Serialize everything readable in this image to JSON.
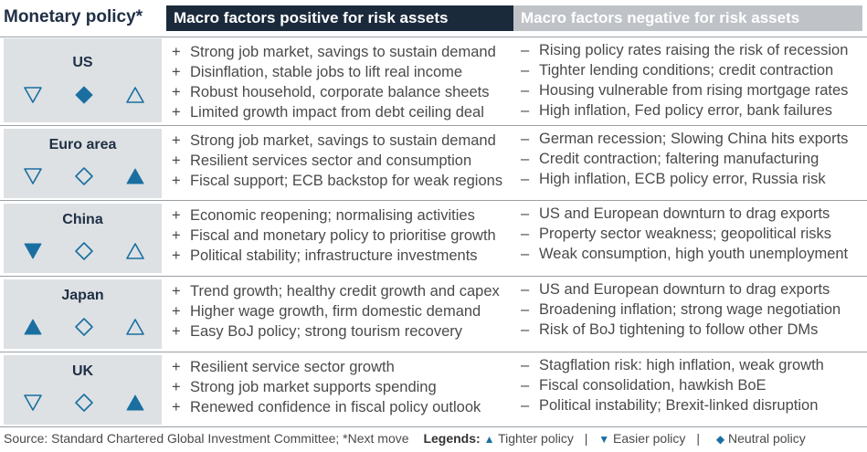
{
  "title": "Monetary policy*",
  "headers": {
    "positive": "Macro factors positive for risk assets",
    "negative": "Macro factors negative for risk assets"
  },
  "colors": {
    "accent_blue": "#1a6fa0",
    "header_dark": "#1b2a3b",
    "header_grey": "#bfc3c7",
    "region_bg": "#dde1e4"
  },
  "markers": {
    "positive": "+",
    "negative": "–"
  },
  "regions": [
    {
      "name": "US",
      "symbols": [
        "down-triangle-outline",
        "diamond-filled",
        "up-triangle-outline"
      ],
      "positives": [
        "Strong job market, savings to sustain demand",
        "Disinflation, stable jobs to lift real income",
        "Robust household, corporate balance sheets",
        "Limited growth impact from debt ceiling deal"
      ],
      "negatives": [
        "Rising policy rates raising the risk of recession",
        "Tighter lending conditions; credit contraction",
        "Housing vulnerable from rising mortgage rates",
        "High inflation, Fed policy error, bank failures"
      ]
    },
    {
      "name": "Euro area",
      "symbols": [
        "down-triangle-outline",
        "diamond-outline",
        "up-triangle-filled"
      ],
      "positives": [
        "Strong job market, savings to sustain demand",
        "Resilient services sector and consumption",
        "Fiscal support; ECB backstop for weak regions"
      ],
      "negatives": [
        "German recession; Slowing China hits exports",
        "Credit contraction; faltering manufacturing",
        "High inflation, ECB policy error, Russia risk"
      ]
    },
    {
      "name": "China",
      "symbols": [
        "down-triangle-filled",
        "diamond-outline",
        "up-triangle-outline"
      ],
      "positives": [
        "Economic reopening; normalising activities",
        "Fiscal and monetary policy to prioritise growth",
        "Political stability; infrastructure investments"
      ],
      "negatives": [
        "US and European downturn to drag exports",
        "Property sector weakness; geopolitical risks",
        "Weak consumption, high youth unemployment"
      ]
    },
    {
      "name": "Japan",
      "symbols": [
        "up-triangle-filled",
        "diamond-outline",
        "up-triangle-outline"
      ],
      "positives": [
        "Trend growth; healthy credit growth and capex",
        "Higher wage growth, firm domestic demand",
        "Easy BoJ policy; strong tourism recovery"
      ],
      "negatives": [
        "US and European downturn to drag exports",
        "Broadening inflation; strong wage negotiation",
        "Risk of BoJ tightening to follow other DMs"
      ]
    },
    {
      "name": "UK",
      "symbols": [
        "down-triangle-outline",
        "diamond-outline",
        "up-triangle-filled"
      ],
      "positives": [
        "Resilient service sector growth",
        "Strong job market supports spending",
        "Renewed confidence in fiscal policy outlook"
      ],
      "negatives": [
        "Stagflation risk: high inflation, weak growth",
        "Fiscal consolidation, hawkish BoE",
        "Political instability; Brexit-linked disruption"
      ]
    }
  ],
  "footer": {
    "source": "Source: Standard Chartered Global Investment Committee; *Next move",
    "legends_label": "Legends:",
    "tighter": "Tighter policy",
    "easier": "Easier policy",
    "neutral": "Neutral policy",
    "separator": "|"
  }
}
